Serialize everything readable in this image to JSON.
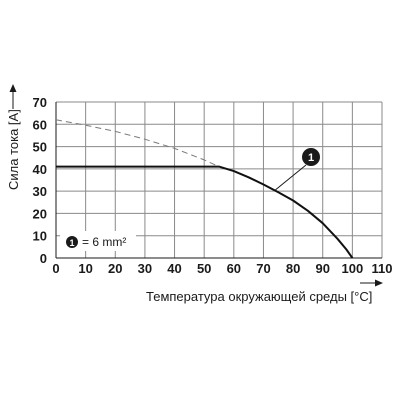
{
  "chart_data": {
    "type": "line",
    "xlabel": "Температура окружающей среды [°C]",
    "ylabel": "Сила тока [A]",
    "xlim": [
      0,
      110
    ],
    "ylim": [
      0,
      70
    ],
    "x_ticks": [
      "0",
      "10",
      "20",
      "30",
      "40",
      "50",
      "60",
      "70",
      "80",
      "90",
      "100",
      "110"
    ],
    "y_ticks": [
      "0",
      "10",
      "20",
      "30",
      "40",
      "50",
      "60",
      "70"
    ],
    "grid": true,
    "series": [
      {
        "name": "1",
        "style": "solid",
        "x": [
          0,
          55,
          60,
          65,
          70,
          75,
          80,
          85,
          90,
          95,
          98,
          100
        ],
        "y": [
          41,
          41,
          39,
          36.2,
          33,
          29.5,
          25.8,
          21.2,
          15.6,
          8.6,
          3.8,
          0
        ]
      },
      {
        "name": "",
        "style": "dashed",
        "x": [
          0,
          10,
          20,
          30,
          40,
          50,
          55
        ],
        "y": [
          62,
          59.6,
          56.8,
          53.3,
          49.2,
          44,
          41
        ]
      }
    ],
    "annotation": {
      "label": "1",
      "target_x": 74,
      "target_y": 30.5
    },
    "legend": {
      "label": "1",
      "text": "= 6 mm²",
      "placement": "lower-left"
    }
  }
}
